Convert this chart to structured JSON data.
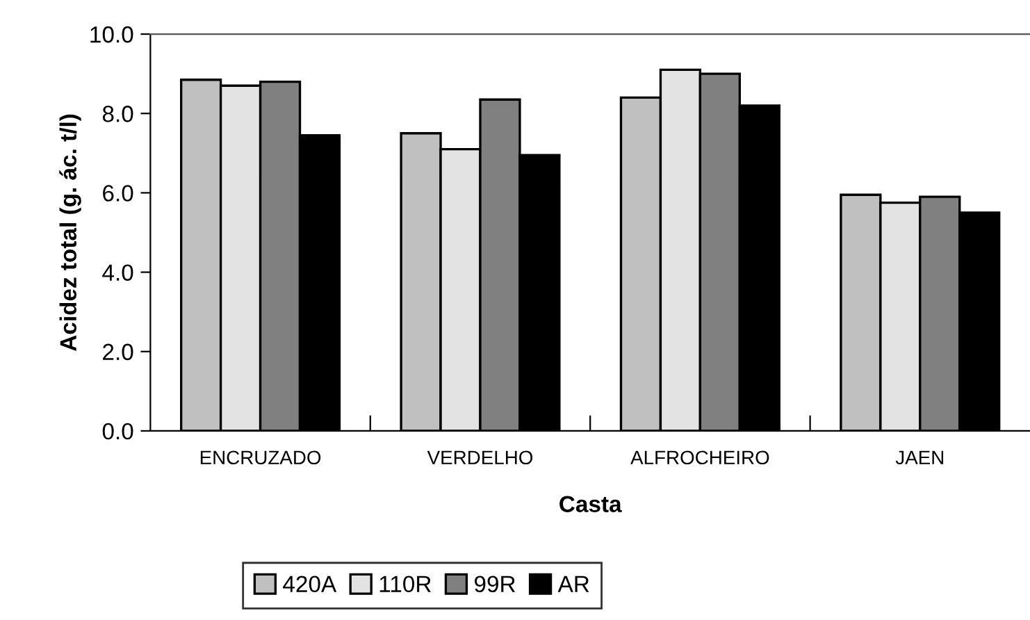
{
  "chart_data": {
    "type": "bar",
    "xlabel": "Casta",
    "ylabel": "Acidez total (g. ác. t/l)",
    "categories": [
      "ENCRUZADO",
      "VERDELHO",
      "ALFROCHEIRO",
      "JAEN"
    ],
    "series": [
      {
        "name": "420A",
        "color": "#c0c0c0",
        "values": [
          8.85,
          7.5,
          8.4,
          5.95
        ]
      },
      {
        "name": "110R",
        "color": "#e3e3e3",
        "values": [
          8.7,
          7.1,
          9.1,
          5.75
        ]
      },
      {
        "name": "99R",
        "color": "#808080",
        "values": [
          8.8,
          8.35,
          9.0,
          5.9
        ]
      },
      {
        "name": "AR",
        "color": "#000000",
        "values": [
          7.45,
          6.95,
          8.2,
          5.5
        ]
      }
    ],
    "ylim": [
      0,
      10
    ],
    "yticks": [
      {
        "value": 0,
        "label": "0.0"
      },
      {
        "value": 2,
        "label": "2.0"
      },
      {
        "value": 4,
        "label": "4.0"
      },
      {
        "value": 6,
        "label": "6.0"
      },
      {
        "value": 8,
        "label": "8.0"
      },
      {
        "value": 10,
        "label": "10.0"
      }
    ],
    "grid": false,
    "legend": "bottom"
  }
}
